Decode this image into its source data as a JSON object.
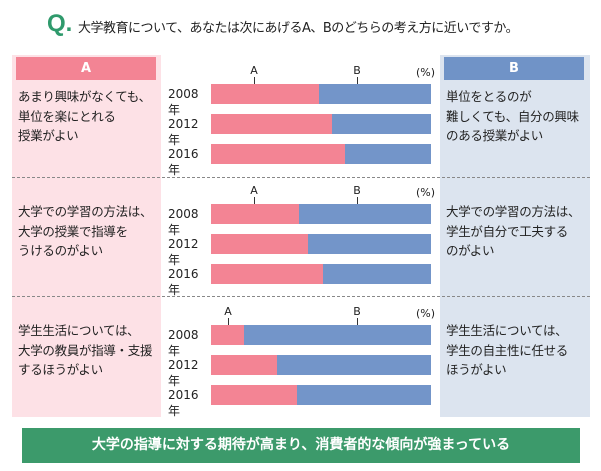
{
  "question": {
    "mark": "Q.",
    "text": "大学教育について、あなたは次にあげるA、Bのどちらの考え方に近いですか。"
  },
  "headers": {
    "a": "A",
    "b": "B"
  },
  "unit": "(%)",
  "chart_data": {
    "type": "bar",
    "stacked": true,
    "categories": [
      "2008年",
      "2012年",
      "2016年"
    ],
    "xlim": [
      0,
      100
    ],
    "groups": [
      {
        "a_label": "あまり興味がなくても、\n単位を楽にとれる\n授業がよい",
        "b_label": "単位をとるのが\n難しくても、自分の興味\nのある授業がよい",
        "a": [
          49,
          55,
          61
        ],
        "b": [
          51,
          45,
          39
        ]
      },
      {
        "a_label": "大学での学習の方法は、\n大学の授業で指導を\nうけるのがよい",
        "b_label": "大学での学習の方法は、\n学生が自分で工夫する\nのがよい",
        "a": [
          40,
          44,
          51
        ],
        "b": [
          60,
          56,
          49
        ]
      },
      {
        "a_label": "学生生活については、\n大学の教員が指導・支援\nするほうがよい",
        "b_label": "学生生活については、\n学生の自主性に任せる\nほうがよい",
        "a": [
          15,
          30,
          39
        ],
        "b": [
          85,
          70,
          61
        ]
      }
    ],
    "series": [
      {
        "name": "A",
        "color": "#f38494"
      },
      {
        "name": "B",
        "color": "#7395c9"
      }
    ]
  },
  "banner": "大学の指導に対する期待が高まり、消費者的な傾向が強まっている"
}
